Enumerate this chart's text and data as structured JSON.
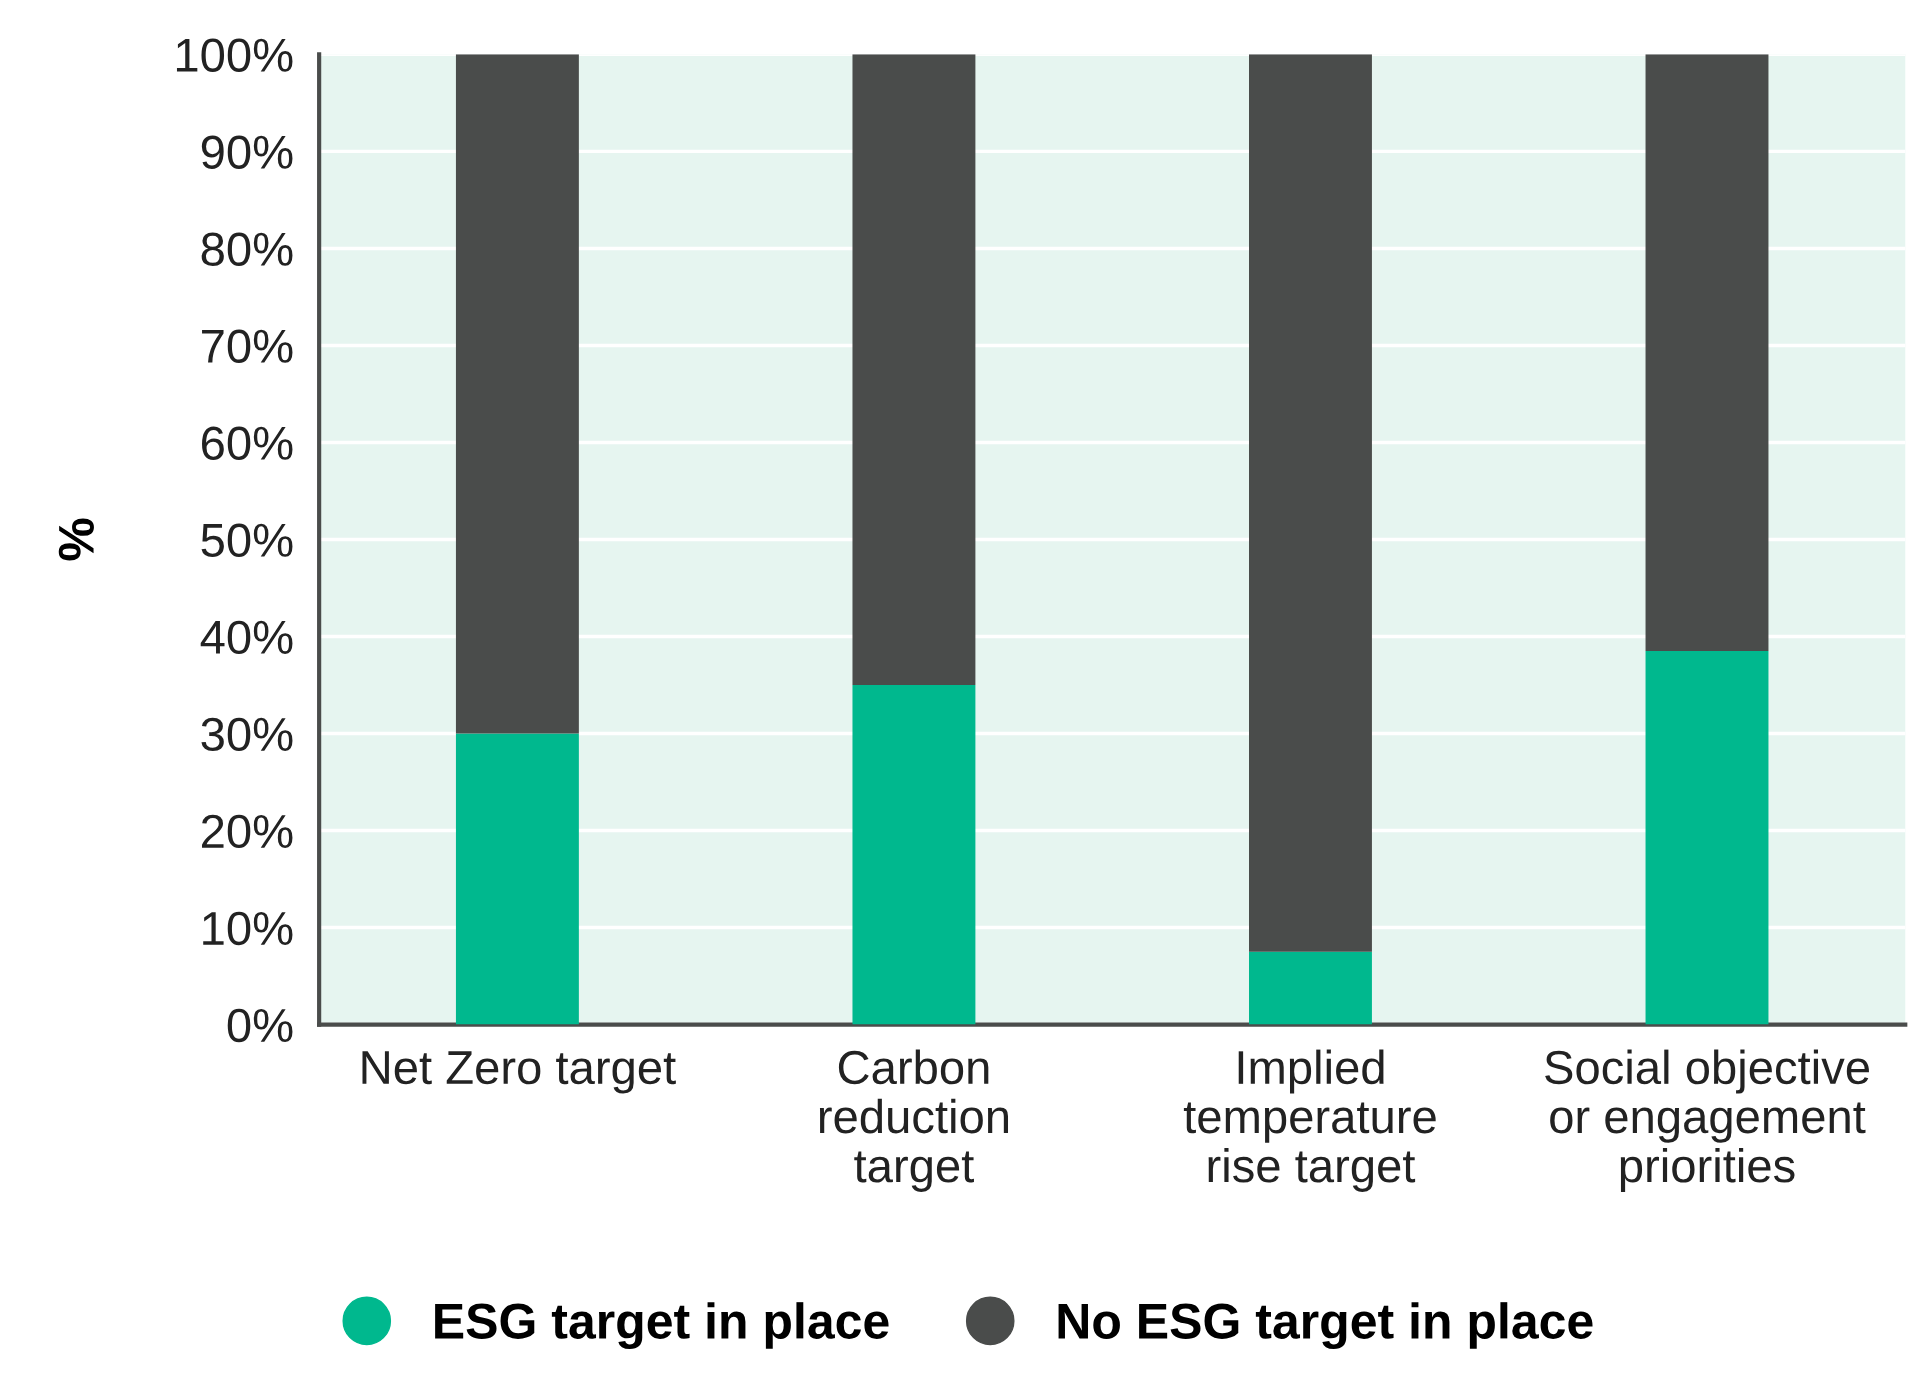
{
  "chart_data": {
    "type": "bar",
    "stacked": true,
    "ylabel": "%",
    "categories": [
      "Net Zero target",
      "Carbon\nreduction\ntarget",
      "Implied\ntemperature\nrise target",
      "Social objective\nor engagement\npriorities"
    ],
    "series": [
      {
        "name": "ESG target in place",
        "color": "#00b88e",
        "values": [
          30,
          35,
          7.5,
          38.5
        ]
      },
      {
        "name": "No ESG target in place",
        "color": "#4a4c4b",
        "values": [
          70,
          65,
          92.5,
          61.5
        ]
      }
    ],
    "ylim": [
      0,
      100
    ],
    "yticks": [
      {
        "value": 0,
        "label": "0%"
      },
      {
        "value": 10,
        "label": "10%"
      },
      {
        "value": 20,
        "label": "20%"
      },
      {
        "value": 30,
        "label": "30%"
      },
      {
        "value": 40,
        "label": "40%"
      },
      {
        "value": 50,
        "label": "50%"
      },
      {
        "value": 60,
        "label": "60%"
      },
      {
        "value": 70,
        "label": "70%"
      },
      {
        "value": 80,
        "label": "80%"
      },
      {
        "value": 90,
        "label": "90%"
      },
      {
        "value": 100,
        "label": "100%"
      }
    ],
    "grid": "y",
    "legend": "bottom"
  }
}
